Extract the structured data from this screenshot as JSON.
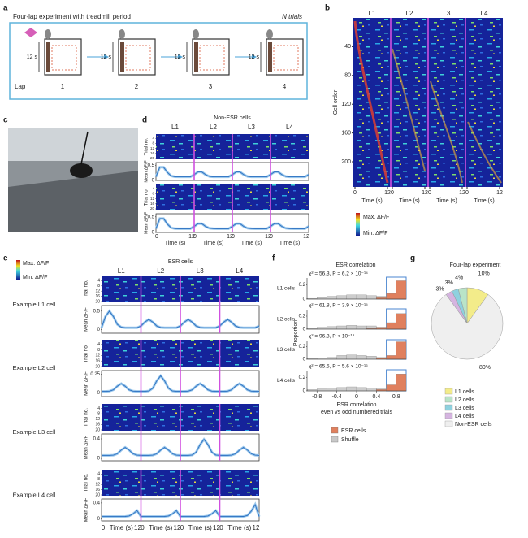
{
  "figure": {
    "a": {
      "letter": "a",
      "title": "Four-lap experiment with treadmill period",
      "trials": "N trials",
      "duration": "12 s",
      "lap_label": "Lap",
      "laps": [
        "1",
        "2",
        "3",
        "4"
      ]
    },
    "b": {
      "letter": "b",
      "laps": [
        "L1",
        "L2",
        "L3",
        "L4"
      ],
      "ylabel": "Cell order",
      "ylim": [
        0,
        235
      ],
      "yticks": [
        40,
        80,
        120,
        160,
        200
      ],
      "xlim": [
        0,
        12
      ],
      "xticks": [
        0,
        12
      ],
      "xlabel": "Time (s)",
      "colorbar_max": "Max. ΔF/F",
      "colorbar_min": "Min. ΔF/F"
    },
    "c": {
      "letter": "c"
    },
    "d": {
      "letter": "d",
      "title": "Non-ESR cells",
      "laps": [
        "L1",
        "L2",
        "L3",
        "L4"
      ],
      "trial_label": "Trial no.",
      "trial_lim": [
        0,
        20
      ],
      "trial_ticks": [
        4,
        8,
        12,
        16,
        20
      ],
      "mean_label": "Mean ΔF/F",
      "traces": [
        {
          "ylim": [
            0,
            0.6
          ],
          "yticks": [
            0.5,
            0
          ]
        },
        {
          "ylim": [
            0,
            0.6
          ],
          "yticks": [
            0.5,
            0
          ]
        }
      ],
      "xlim": [
        0,
        12
      ],
      "xticks": [
        0,
        12
      ],
      "xlabel": "Time (s)"
    },
    "e": {
      "letter": "e",
      "colorbar_max": "Max. ΔF/F",
      "colorbar_min": "Min. ΔF/F",
      "title": "ESR cells",
      "laps": [
        "L1",
        "L2",
        "L3",
        "L4"
      ],
      "trial_label": "Trial no.",
      "trial_lim": [
        0,
        20
      ],
      "trial_ticks": [
        4,
        8,
        12,
        16,
        20
      ],
      "mean_label": "Mean ΔF/F",
      "examples": [
        {
          "label": "Example L1 cell",
          "ylim": [
            -0.1,
            0.65
          ],
          "yticks": [
            0.5,
            0
          ]
        },
        {
          "label": "Example L2 cell",
          "ylim": [
            -0.05,
            0.3
          ],
          "yticks": [
            0.25,
            0
          ]
        },
        {
          "label": "Example L3 cell",
          "ylim": [
            -0.05,
            0.5
          ],
          "yticks": [
            0.4,
            0
          ]
        },
        {
          "label": "Example L4 cell",
          "ylim": [
            -0.05,
            0.5
          ],
          "yticks": [
            0.4,
            0
          ]
        }
      ],
      "xlim": [
        0,
        12
      ],
      "xticks": [
        0,
        12
      ],
      "xlabel": "Time (s)"
    },
    "f": {
      "letter": "f",
      "type": "histogram",
      "title": "ESR correlation",
      "ylabel": "Proportion",
      "xlabel": "ESR correlation",
      "xlabel2": "even vs odd numbered trials",
      "xlim": [
        -1,
        1
      ],
      "xticks": [
        -0.8,
        -0.4,
        0,
        0.4,
        0.8
      ],
      "ylim": [
        0,
        0.3
      ],
      "bins": [
        -1,
        -0.8,
        -0.6,
        -0.4,
        -0.2,
        0,
        0.2,
        0.4,
        0.6,
        0.8,
        1
      ],
      "series": [
        {
          "name": "ESR cells",
          "color": "#e0805e"
        },
        {
          "name": "Shuffle",
          "color": "#c8c8c8"
        }
      ],
      "panels": [
        {
          "label": "L1 cells",
          "stats": "χ² = 56.3, P = 6.2 × 10⁻¹⁴",
          "yticks": [
            0.2,
            0
          ],
          "values": [
            [
              0,
              0,
              0,
              0,
              0,
              0,
              0,
              0.02,
              0.08,
              0.26
            ],
            [
              0.01,
              0.02,
              0.04,
              0.05,
              0.06,
              0.06,
              0.05,
              0.04,
              0.02,
              0.01
            ]
          ]
        },
        {
          "label": "L2 cells",
          "stats": "χ² = 61.8, P = 3.9 × 10⁻¹⁵",
          "yticks": [
            0.2,
            0
          ],
          "values": [
            [
              0,
              0,
              0,
              0,
              0,
              0,
              0.01,
              0.03,
              0.1,
              0.24
            ],
            [
              0.01,
              0.03,
              0.04,
              0.05,
              0.06,
              0.05,
              0.05,
              0.03,
              0.02,
              0.01
            ]
          ]
        },
        {
          "label": "L3 cells",
          "stats": "χ² = 96.3, P < 10⁻¹⁸",
          "yticks": [
            0.2,
            0
          ],
          "values": [
            [
              0,
              0,
              0,
              0,
              0,
              0,
              0,
              0.02,
              0.06,
              0.28
            ],
            [
              0.01,
              0.02,
              0.03,
              0.06,
              0.07,
              0.06,
              0.05,
              0.03,
              0.02,
              0.01
            ]
          ]
        },
        {
          "label": "L4 cells",
          "stats": "χ² = 65.5, P = 5.6 × 10⁻¹⁶",
          "yticks": [
            0.2,
            0
          ],
          "values": [
            [
              0,
              0,
              0,
              0,
              0,
              0,
              0,
              0.02,
              0.09,
              0.25
            ],
            [
              0.02,
              0.03,
              0.04,
              0.05,
              0.06,
              0.05,
              0.04,
              0.03,
              0.02,
              0.01
            ]
          ]
        }
      ]
    },
    "g": {
      "letter": "g",
      "type": "pie",
      "title": "Four-lap experiment",
      "categories": [
        "L1 cells",
        "L2 cells",
        "L3 cells",
        "L4 cells",
        "Non-ESR cells"
      ],
      "values": [
        10,
        4,
        3,
        3,
        80
      ],
      "value_labels": [
        "10%",
        "4%",
        "3%",
        "3%",
        "80%"
      ],
      "colors": [
        "#f3ec8a",
        "#b9e4c8",
        "#8ed1df",
        "#d5b4e0",
        "#efefef"
      ]
    }
  }
}
